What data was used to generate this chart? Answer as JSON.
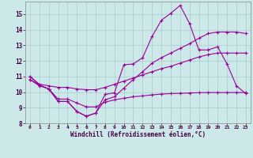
{
  "xlabel": "Windchill (Refroidissement éolien,°C)",
  "background_color": "#cce8e8",
  "grid_color": "#aacccc",
  "line_color": "#990099",
  "xlim": [
    -0.5,
    23.5
  ],
  "ylim": [
    8,
    15.8
  ],
  "yticks": [
    8,
    9,
    10,
    11,
    12,
    13,
    14,
    15
  ],
  "xticks": [
    0,
    1,
    2,
    3,
    4,
    5,
    6,
    7,
    8,
    9,
    10,
    11,
    12,
    13,
    14,
    15,
    16,
    17,
    18,
    19,
    20,
    21,
    22,
    23
  ],
  "series1_x": [
    0,
    1,
    2,
    3,
    4,
    5,
    6,
    7,
    8,
    9,
    10,
    11,
    12,
    13,
    14,
    15,
    16,
    17,
    18,
    19,
    20,
    21,
    22,
    23
  ],
  "series1_y": [
    10.8,
    10.4,
    10.2,
    9.4,
    9.4,
    8.75,
    8.45,
    8.65,
    9.85,
    9.95,
    11.75,
    11.8,
    12.2,
    13.55,
    14.6,
    15.05,
    15.55,
    14.4,
    12.7,
    12.7,
    12.9,
    11.8,
    10.4,
    9.9
  ],
  "series2_x": [
    0,
    1,
    2,
    3,
    4,
    5,
    6,
    7,
    8,
    9,
    10,
    11,
    12,
    13,
    14,
    15,
    16,
    17,
    18,
    19,
    20,
    21,
    22,
    23
  ],
  "series2_y": [
    10.8,
    10.45,
    10.2,
    9.4,
    9.4,
    8.75,
    8.45,
    8.65,
    9.5,
    9.7,
    10.25,
    10.8,
    11.3,
    11.85,
    12.2,
    12.5,
    12.8,
    13.1,
    13.45,
    13.75,
    13.85,
    13.85,
    13.85,
    13.75
  ],
  "series3_x": [
    0,
    1,
    2,
    3,
    4,
    5,
    6,
    7,
    8,
    9,
    10,
    11,
    12,
    13,
    14,
    15,
    16,
    17,
    18,
    19,
    20,
    21,
    22,
    23
  ],
  "series3_y": [
    11.0,
    10.45,
    10.2,
    9.55,
    9.55,
    9.3,
    9.05,
    9.05,
    9.35,
    9.5,
    9.6,
    9.7,
    9.75,
    9.82,
    9.87,
    9.9,
    9.92,
    9.94,
    9.96,
    9.97,
    9.97,
    9.97,
    9.97,
    9.97
  ],
  "series4_x": [
    0,
    1,
    2,
    3,
    4,
    5,
    6,
    7,
    8,
    9,
    10,
    11,
    12,
    13,
    14,
    15,
    16,
    17,
    18,
    19,
    20,
    21,
    22,
    23
  ],
  "series4_y": [
    11.0,
    10.5,
    10.4,
    10.3,
    10.3,
    10.2,
    10.15,
    10.15,
    10.3,
    10.5,
    10.7,
    10.9,
    11.1,
    11.3,
    11.5,
    11.65,
    11.85,
    12.05,
    12.25,
    12.4,
    12.5,
    12.5,
    12.5,
    12.5
  ]
}
